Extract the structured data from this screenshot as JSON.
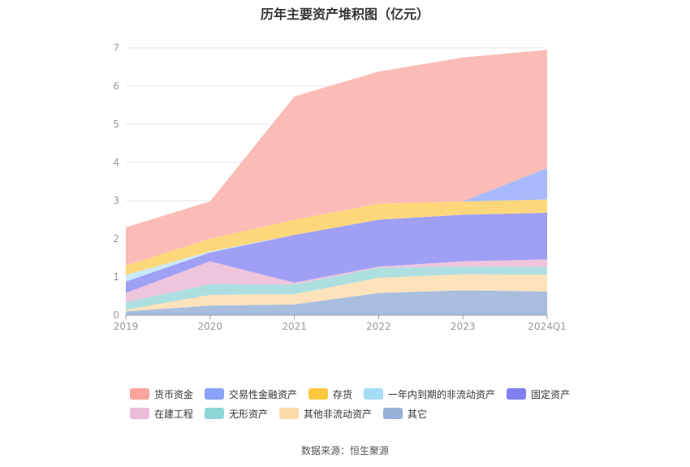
{
  "chart_data": {
    "type": "area",
    "stacked": true,
    "title": "历年主要资产堆积图（亿元）",
    "source": "数据来源：恒生聚源",
    "categories": [
      "2019",
      "2020",
      "2021",
      "2022",
      "2023",
      "2024Q1"
    ],
    "ylim": [
      0,
      7
    ],
    "yticks": [
      "0",
      "1",
      "2",
      "3",
      "4",
      "5",
      "6",
      "7"
    ],
    "series": [
      {
        "name": "其它",
        "color": "#a9bedf",
        "legend_color": "#97b1d9",
        "values": [
          0.1,
          0.25,
          0.28,
          0.58,
          0.65,
          0.62
        ]
      },
      {
        "name": "其他非流动资产",
        "color": "#fde2bb",
        "legend_color": "#fdd9a8",
        "values": [
          0.04,
          0.28,
          0.27,
          0.4,
          0.42,
          0.44
        ]
      },
      {
        "name": "无形资产",
        "color": "#addfe0",
        "legend_color": "#8fd6d6",
        "values": [
          0.2,
          0.28,
          0.25,
          0.26,
          0.2,
          0.2
        ]
      },
      {
        "name": "在建工程",
        "color": "#efc5de",
        "legend_color": "#ebbbd8",
        "values": [
          0.24,
          0.6,
          0.05,
          0.03,
          0.14,
          0.2
        ]
      },
      {
        "name": "固定资产",
        "color": "#9f9ff5",
        "legend_color": "#7f7ff0",
        "values": [
          0.3,
          0.23,
          1.25,
          1.23,
          1.22,
          1.22
        ]
      },
      {
        "name": "一年内到期的非流动资产",
        "color": "#c7e9fb",
        "legend_color": "#a5dcf7",
        "values": [
          0.17,
          0.03,
          0.0,
          0.0,
          0.0,
          0.0
        ]
      },
      {
        "name": "存货",
        "color": "#fed77b",
        "legend_color": "#fdc83d",
        "values": [
          0.25,
          0.33,
          0.4,
          0.42,
          0.35,
          0.35
        ]
      },
      {
        "name": "交易性金融资产",
        "color": "#a8bafc",
        "legend_color": "#8aa3f8",
        "values": [
          0.0,
          0.0,
          0.0,
          0.0,
          0.0,
          0.82
        ]
      },
      {
        "name": "货币资金",
        "color": "#fbbcb7",
        "legend_color": "#f9a59e",
        "values": [
          1.0,
          0.98,
          3.23,
          3.46,
          3.77,
          3.1
        ]
      }
    ],
    "legend_order": [
      [
        "货币资金",
        "交易性金融资产",
        "存货",
        "一年内到期的非流动资产",
        "固定资产"
      ],
      [
        "在建工程",
        "无形资产",
        "其他非流动资产",
        "其它"
      ]
    ]
  }
}
